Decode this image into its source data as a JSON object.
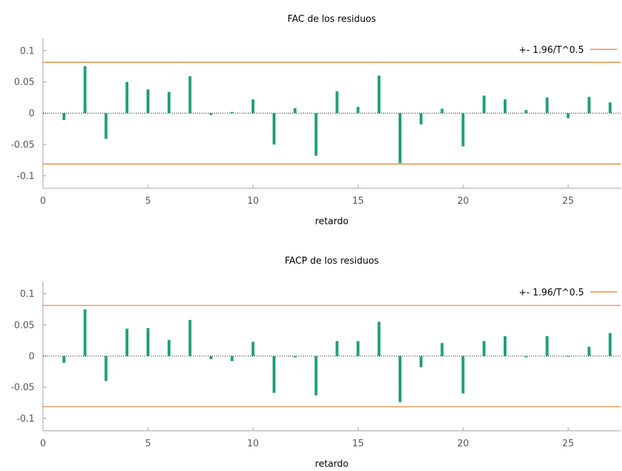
{
  "colors": {
    "bar": "#1f9e76",
    "band": "#e07b2b",
    "axis": "#a0a0a0",
    "text": "#000000",
    "tick_text": "#555555"
  },
  "chart_data": [
    {
      "type": "bar",
      "title": "FAC de los residuos",
      "xlabel": "retardo",
      "ylabel": "",
      "xlim": [
        0,
        27.5
      ],
      "ylim": [
        -0.12,
        0.12
      ],
      "xticks": [
        "0",
        "5",
        "10",
        "15",
        "20",
        "25"
      ],
      "yticks": [
        "0.1",
        "0.05",
        "0",
        "-0.05",
        "-0.1"
      ],
      "band_value": 0.0813,
      "legend": {
        "label": "+- 1.96/T^0.5",
        "position": "top-right"
      },
      "x": [
        1,
        2,
        3,
        4,
        5,
        6,
        7,
        8,
        9,
        10,
        11,
        12,
        13,
        14,
        15,
        16,
        17,
        18,
        19,
        20,
        21,
        22,
        23,
        24,
        25,
        26,
        27
      ],
      "values": [
        -0.011,
        0.075,
        -0.041,
        0.05,
        0.038,
        0.034,
        0.059,
        -0.003,
        0.002,
        0.022,
        -0.05,
        0.008,
        -0.068,
        0.035,
        0.01,
        0.06,
        -0.08,
        -0.018,
        0.007,
        -0.053,
        0.028,
        0.022,
        0.005,
        0.025,
        -0.008,
        0.026,
        0.017
      ]
    },
    {
      "type": "bar",
      "title": "FACP de los residuos",
      "xlabel": "retardo",
      "ylabel": "",
      "xlim": [
        0,
        27.5
      ],
      "ylim": [
        -0.12,
        0.12
      ],
      "xticks": [
        "0",
        "5",
        "10",
        "15",
        "20",
        "25"
      ],
      "yticks": [
        "0.1",
        "0.05",
        "0",
        "-0.05",
        "-0.1"
      ],
      "band_value": 0.0813,
      "legend": {
        "label": "+- 1.96/T^0.5",
        "position": "top-right"
      },
      "x": [
        1,
        2,
        3,
        4,
        5,
        6,
        7,
        8,
        9,
        10,
        11,
        12,
        13,
        14,
        15,
        16,
        17,
        18,
        19,
        20,
        21,
        22,
        23,
        24,
        25,
        26,
        27
      ],
      "values": [
        -0.011,
        0.075,
        -0.04,
        0.044,
        0.045,
        0.026,
        0.058,
        -0.005,
        -0.008,
        0.023,
        -0.059,
        -0.002,
        -0.063,
        0.024,
        0.024,
        0.055,
        -0.074,
        -0.018,
        0.021,
        -0.06,
        0.024,
        0.032,
        -0.002,
        0.032,
        -0.001,
        0.015,
        0.037
      ]
    }
  ]
}
